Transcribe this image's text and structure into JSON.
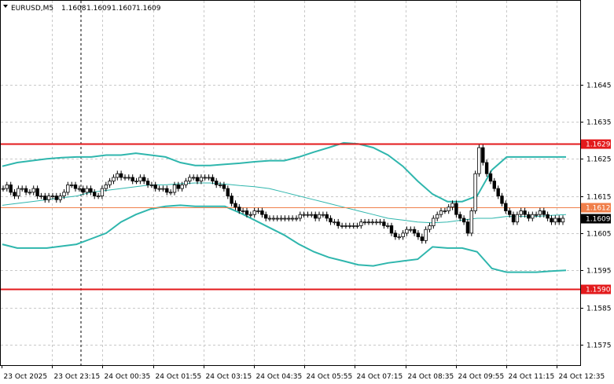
{
  "header": {
    "symbol": "EURUSD,M5",
    "open": "1.1608",
    "high": "1.1609",
    "low": "1.1607",
    "close": "1.1609"
  },
  "colors": {
    "background": "#ffffff",
    "grid": "#c8c8c8",
    "candle": "#000000",
    "bollinger": "#2fb6ad",
    "resistance": "#e31a1c",
    "support": "#e31a1c",
    "current_line": "#f07f4a"
  },
  "chart_data": {
    "type": "candlestick",
    "title": "EURUSD,M5",
    "ylim": [
      1.15695,
      1.16675
    ],
    "yticks": [
      1.1575,
      1.1585,
      1.1595,
      1.1605,
      1.1615,
      1.1625,
      1.1635,
      1.1645
    ],
    "ytick_labels": [
      "1.1575",
      "1.1585",
      "1.1595",
      "1.1605",
      "1.1615",
      "1.1625",
      "1.1635",
      "1.1645"
    ],
    "x_labels": [
      "23 Oct 2025",
      "23 Oct 23:15",
      "24 Oct 00:35",
      "24 Oct 01:55",
      "24 Oct 03:15",
      "24 Oct 04:35",
      "24 Oct 05:55",
      "24 Oct 07:15",
      "24 Oct 08:35",
      "24 Oct 09:55",
      "24 Oct 11:15",
      "24 Oct 12:35"
    ],
    "grid": true,
    "levels": [
      {
        "label": "1.1629",
        "value": 1.1629,
        "kind": "resistance"
      },
      {
        "label": "1.1612",
        "value": 1.1612,
        "kind": "current"
      },
      {
        "label": "1.1609",
        "value": 1.1609,
        "kind": "bid"
      },
      {
        "label": "1.1590",
        "value": 1.159,
        "kind": "support"
      }
    ],
    "session_separator_label": "23 Oct 23:15",
    "candles_close": [
      1.1617,
      1.1618,
      1.1616,
      1.1615,
      1.1617,
      1.1617,
      1.1616,
      1.1616,
      1.1617,
      1.1615,
      1.1615,
      1.1614,
      1.1615,
      1.1615,
      1.1614,
      1.1615,
      1.1616,
      1.1618,
      1.1618,
      1.1617,
      1.1617,
      1.1616,
      1.1617,
      1.1616,
      1.1615,
      1.1615,
      1.1617,
      1.1618,
      1.1619,
      1.162,
      1.1621,
      1.162,
      1.162,
      1.162,
      1.1619,
      1.1619,
      1.162,
      1.1619,
      1.1618,
      1.1618,
      1.1617,
      1.1617,
      1.1617,
      1.1616,
      1.1616,
      1.1618,
      1.1617,
      1.1618,
      1.1619,
      1.162,
      1.162,
      1.1619,
      1.162,
      1.162,
      1.162,
      1.1619,
      1.1618,
      1.1618,
      1.1617,
      1.1615,
      1.1613,
      1.1612,
      1.1611,
      1.1611,
      1.161,
      1.161,
      1.1611,
      1.1611,
      1.161,
      1.1609,
      1.1609,
      1.1609,
      1.1609,
      1.1609,
      1.1609,
      1.1609,
      1.1609,
      1.1609,
      1.161,
      1.161,
      1.161,
      1.161,
      1.1609,
      1.161,
      1.161,
      1.1609,
      1.1608,
      1.1608,
      1.1607,
      1.1607,
      1.1607,
      1.1607,
      1.1607,
      1.1607,
      1.1608,
      1.1608,
      1.1608,
      1.1608,
      1.1608,
      1.1608,
      1.1607,
      1.1607,
      1.1605,
      1.1604,
      1.1604,
      1.1605,
      1.1606,
      1.1606,
      1.1605,
      1.1604,
      1.1603,
      1.1606,
      1.1607,
      1.1609,
      1.161,
      1.1611,
      1.1611,
      1.1612,
      1.1613,
      1.161,
      1.1609,
      1.1608,
      1.1605,
      1.1611,
      1.1621,
      1.1628,
      1.1624,
      1.1621,
      1.1619,
      1.1617,
      1.1615,
      1.1613,
      1.1611,
      1.161,
      1.1608,
      1.161,
      1.1611,
      1.161,
      1.1609,
      1.161,
      1.161,
      1.1611,
      1.161,
      1.1609,
      1.1608,
      1.1609,
      1.1608,
      1.1609
    ],
    "series": [
      {
        "name": "",
        "role": "bb_upper",
        "values": [
          1.1623,
          1.1624,
          1.16245,
          1.1625,
          1.16253,
          1.16255,
          1.16255,
          1.1626,
          1.1626,
          1.16265,
          1.1626,
          1.16255,
          1.1624,
          1.16232,
          1.16232,
          1.16235,
          1.16238,
          1.16242,
          1.16245,
          1.16245,
          1.16255,
          1.16268,
          1.1628,
          1.16293,
          1.1629,
          1.1628,
          1.1626,
          1.1623,
          1.1619,
          1.16155,
          1.16135,
          1.16135,
          1.1615,
          1.1622,
          1.16255,
          1.16255,
          1.16255,
          1.16255,
          1.16255
        ]
      },
      {
        "name": "",
        "role": "bb_middle",
        "values": [
          1.16125,
          1.1613,
          1.16135,
          1.1614,
          1.16145,
          1.1615,
          1.1616,
          1.16165,
          1.1617,
          1.16175,
          1.1618,
          1.1618,
          1.16183,
          1.16185,
          1.16185,
          1.16182,
          1.16178,
          1.16175,
          1.1617,
          1.1616,
          1.1615,
          1.1614,
          1.1613,
          1.1612,
          1.1611,
          1.161,
          1.1609,
          1.16085,
          1.1608,
          1.16078,
          1.1608,
          1.16085,
          1.1609,
          1.1609,
          1.16095,
          1.16095,
          1.16095,
          1.16098,
          1.161
        ]
      },
      {
        "name": "",
        "role": "bb_lower",
        "values": [
          1.1602,
          1.1601,
          1.1601,
          1.1601,
          1.16015,
          1.1602,
          1.16035,
          1.1605,
          1.1608,
          1.161,
          1.16115,
          1.16122,
          1.16125,
          1.16122,
          1.16122,
          1.16122,
          1.16105,
          1.16085,
          1.16065,
          1.16045,
          1.1602,
          1.16,
          1.15985,
          1.15975,
          1.15965,
          1.15962,
          1.1597,
          1.15975,
          1.1598,
          1.16013,
          1.1601,
          1.1601,
          1.16,
          1.15955,
          1.15945,
          1.15945,
          1.15945,
          1.15948,
          1.1595
        ]
      }
    ]
  }
}
